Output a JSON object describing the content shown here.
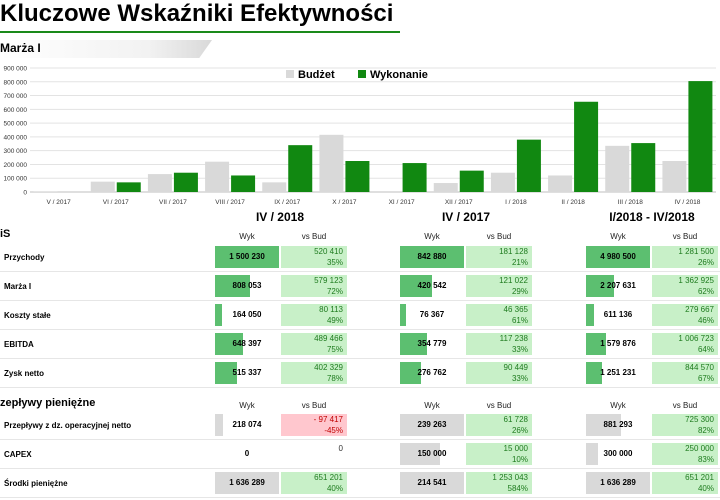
{
  "title": "Kluczowe Wskaźniki Efektywności",
  "subtitle": "Marża I",
  "colors": {
    "budget": "#d9d9d9",
    "actual": "#118811",
    "vsbud_pos": "#c8f0c8",
    "vsbud_neg": "#ffc7ce",
    "bar_green": "#5cbf70",
    "bar_gray": "#d9d9d9"
  },
  "chart_data": {
    "type": "bar",
    "categories": [
      "V / 2017",
      "VI / 2017",
      "VII / 2017",
      "VIII / 2017",
      "IX / 2017",
      "X / 2017",
      "XI / 2017",
      "XII / 2017",
      "I / 2018",
      "II / 2018",
      "III / 2018",
      "IV / 2018"
    ],
    "series": [
      {
        "name": "Budżet",
        "values": [
          5000,
          75000,
          130000,
          220000,
          70000,
          415000,
          0,
          65000,
          140000,
          120000,
          335000,
          225000
        ]
      },
      {
        "name": "Wykonanie",
        "values": [
          0,
          70000,
          140000,
          120000,
          340000,
          225000,
          210000,
          155000,
          380000,
          655000,
          355000,
          805000
        ]
      }
    ],
    "yticks": [
      "0",
      "100 000",
      "200 000",
      "300 000",
      "400 000",
      "500 000",
      "600 000",
      "700 000",
      "800 000",
      "900 000"
    ],
    "ylim": [
      0,
      900000
    ],
    "legend_position": "top-center",
    "grid": true
  },
  "periods": [
    "IV / 2018",
    "IV / 2017",
    "I/2018 - IV/2018"
  ],
  "section1": {
    "label": "iS",
    "col_wyk": "Wyk",
    "col_vs": "vs Bud"
  },
  "section2": {
    "label": "zepływy pieniężne",
    "col_wyk": "Wyk",
    "col_vs": "vs Bud"
  },
  "rows1": [
    {
      "label": "Przychody",
      "cells": [
        {
          "wyk": "1 500 230",
          "fill": 1.0,
          "vs": "520 410",
          "pct": "35%",
          "neg": false
        },
        {
          "wyk": "842 880",
          "fill": 1.0,
          "vs": "181 128",
          "pct": "21%",
          "neg": false
        },
        {
          "wyk": "4 980 500",
          "fill": 1.0,
          "vs": "1 281 500",
          "pct": "26%",
          "neg": false
        }
      ]
    },
    {
      "label": "Marża I",
      "cells": [
        {
          "wyk": "808 053",
          "fill": 0.54,
          "vs": "579 123",
          "pct": "72%",
          "neg": false
        },
        {
          "wyk": "420 542",
          "fill": 0.5,
          "vs": "121 022",
          "pct": "29%",
          "neg": false
        },
        {
          "wyk": "2 207 631",
          "fill": 0.44,
          "vs": "1 362 925",
          "pct": "62%",
          "neg": false
        }
      ]
    },
    {
      "label": "Koszty stałe",
      "cells": [
        {
          "wyk": "164 050",
          "fill": 0.11,
          "vs": "80 113",
          "pct": "49%",
          "neg": false
        },
        {
          "wyk": "76 367",
          "fill": 0.09,
          "vs": "46 365",
          "pct": "61%",
          "neg": false
        },
        {
          "wyk": "611 136",
          "fill": 0.12,
          "vs": "279 667",
          "pct": "46%",
          "neg": false
        }
      ]
    },
    {
      "label": "EBITDA",
      "cells": [
        {
          "wyk": "648 397",
          "fill": 0.43,
          "vs": "489 466",
          "pct": "75%",
          "neg": false
        },
        {
          "wyk": "354 779",
          "fill": 0.42,
          "vs": "117 238",
          "pct": "33%",
          "neg": false
        },
        {
          "wyk": "1 579 876",
          "fill": 0.32,
          "vs": "1 006 723",
          "pct": "64%",
          "neg": false
        }
      ]
    },
    {
      "label": "Zysk netto",
      "cells": [
        {
          "wyk": "515 337",
          "fill": 0.34,
          "vs": "402 329",
          "pct": "78%",
          "neg": false
        },
        {
          "wyk": "276 762",
          "fill": 0.33,
          "vs": "90 449",
          "pct": "33%",
          "neg": false
        },
        {
          "wyk": "1 251 231",
          "fill": 0.25,
          "vs": "844 570",
          "pct": "67%",
          "neg": false
        }
      ]
    }
  ],
  "rows2": [
    {
      "label": "Przepływy z dz. operacyjnej netto",
      "cells": [
        {
          "wyk": "218 074",
          "fill": 0.13,
          "vs": "- 97 417",
          "pct": "-45%",
          "neg": true
        },
        {
          "wyk": "239 263",
          "fill": 1.0,
          "vs": "61 728",
          "pct": "26%",
          "neg": false
        },
        {
          "wyk": "881 293",
          "fill": 0.54,
          "vs": "725 300",
          "pct": "82%",
          "neg": false
        }
      ]
    },
    {
      "label": "CAPEX",
      "cells": [
        {
          "wyk": "0",
          "fill": 0.0,
          "vs": "0",
          "pct": "",
          "neg": false,
          "plain": true
        },
        {
          "wyk": "150 000",
          "fill": 0.63,
          "vs": "15 000",
          "pct": "10%",
          "neg": false
        },
        {
          "wyk": "300 000",
          "fill": 0.18,
          "vs": "250 000",
          "pct": "83%",
          "neg": false
        }
      ]
    },
    {
      "label": "Środki pieniężne",
      "cells": [
        {
          "wyk": "1 636 289",
          "fill": 1.0,
          "vs": "651 201",
          "pct": "40%",
          "neg": false
        },
        {
          "wyk": "214 541",
          "fill": 1.0,
          "vs": "1 253 043",
          "pct": "584%",
          "neg": false
        },
        {
          "wyk": "1 636 289",
          "fill": 1.0,
          "vs": "651 201",
          "pct": "40%",
          "neg": false
        }
      ]
    }
  ]
}
